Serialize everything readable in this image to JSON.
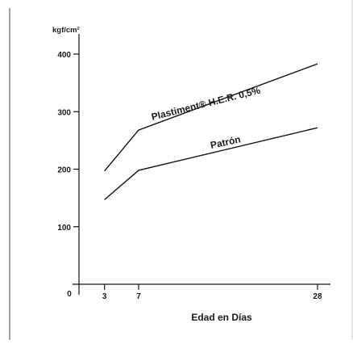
{
  "chart_data": {
    "type": "line",
    "title": "",
    "ylabel": "kgf/cm²",
    "xlabel": "Edad en Días",
    "origin_label": "0",
    "x": [
      3,
      7,
      28
    ],
    "x_tick_labels": [
      "3",
      "7",
      "28"
    ],
    "y_ticks": [
      100,
      200,
      300,
      400
    ],
    "y_tick_labels": [
      "100",
      "200",
      "300",
      "400"
    ],
    "xlim": [
      0,
      28
    ],
    "ylim": [
      0,
      400
    ],
    "grid": false,
    "series": [
      {
        "name": "Plastiment® H.E.R. 0,5%",
        "values": [
          197,
          268,
          383
        ]
      },
      {
        "name": "Patrón",
        "values": [
          147,
          198,
          272
        ]
      }
    ]
  }
}
